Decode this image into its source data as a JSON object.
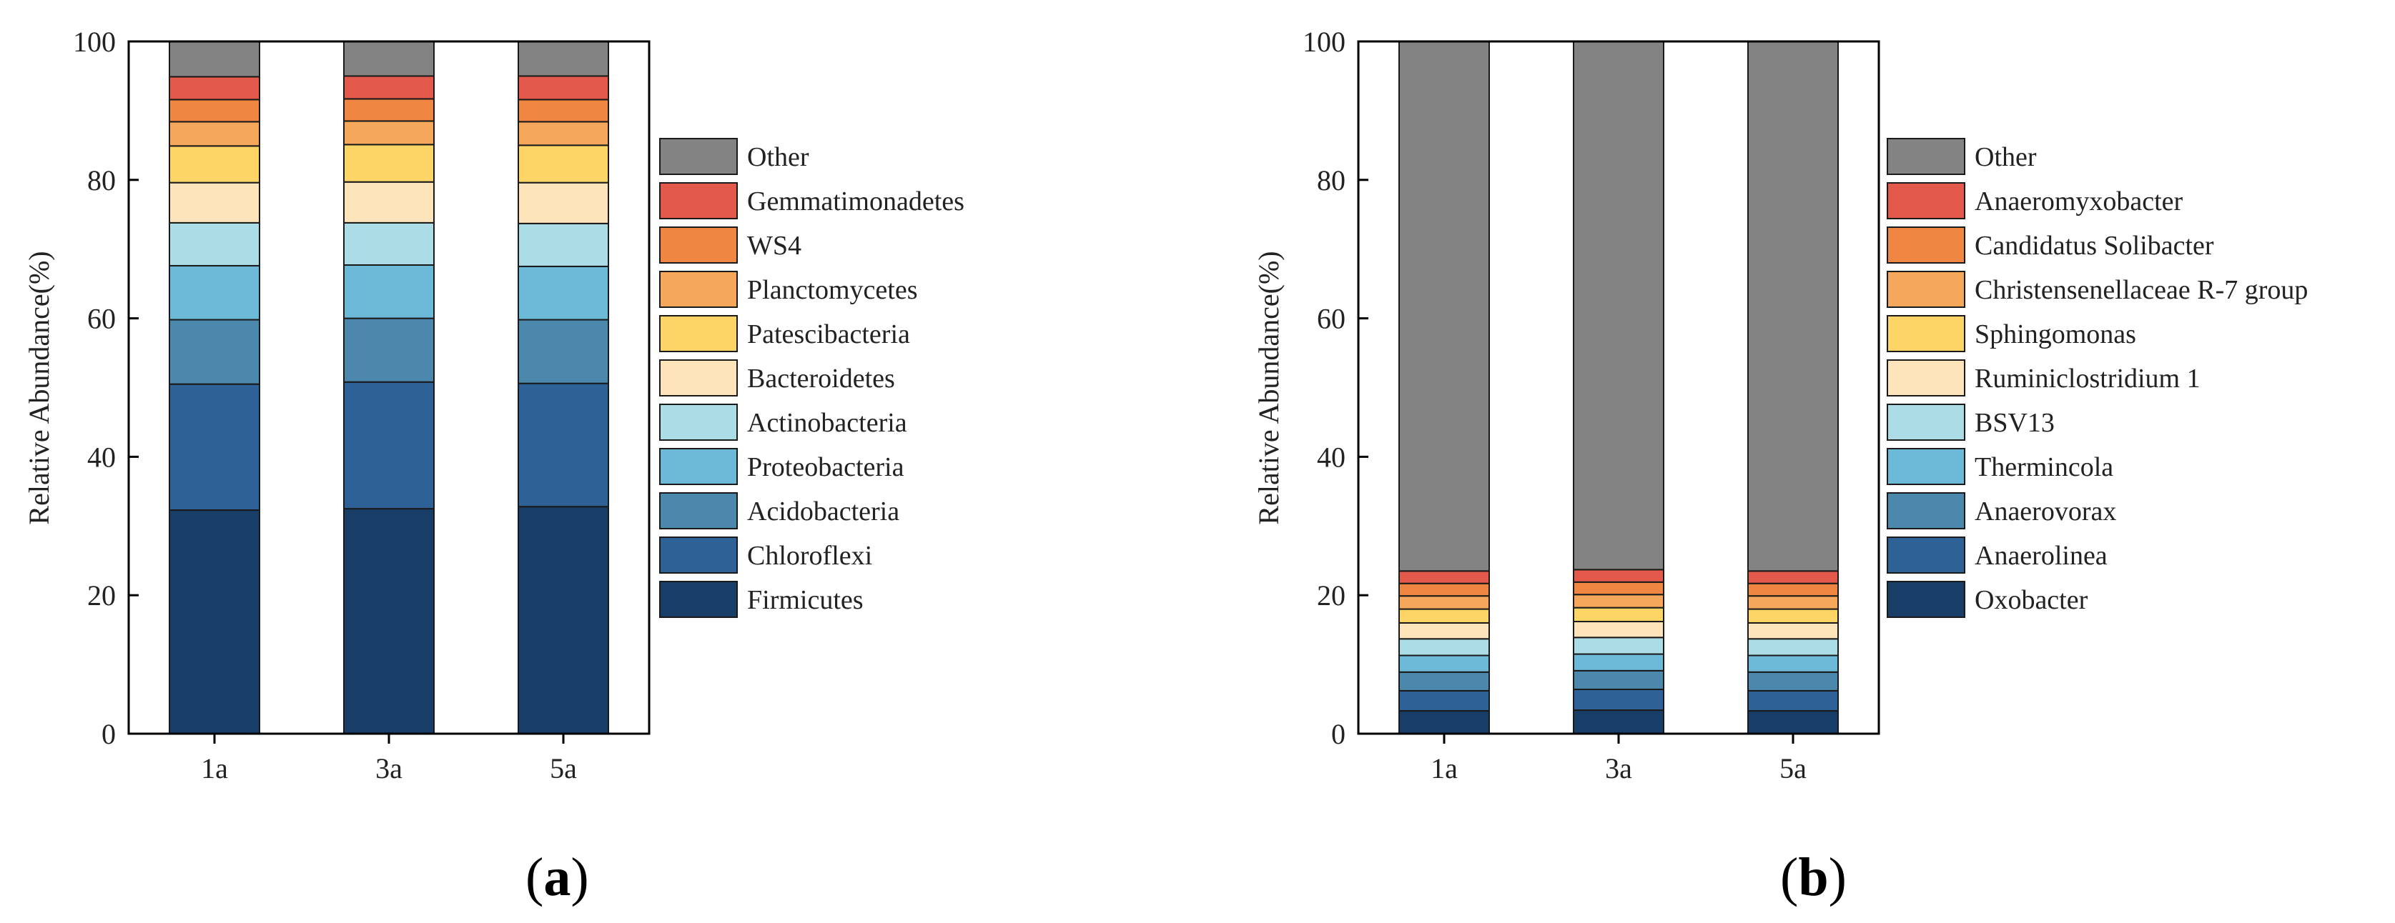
{
  "colors": [
    "#183e68",
    "#2e6196",
    "#4b88ac",
    "#6cb9d8",
    "#acdde6",
    "#fde4bb",
    "#fdd466",
    "#f5a75b",
    "#ef8641",
    "#e3594b",
    "#838383"
  ],
  "chart_data": [
    {
      "panel_label": "a",
      "type": "bar",
      "stacked": true,
      "ylabel": "Relative Abundance(%)",
      "xlabel": "",
      "ylim": [
        0,
        100
      ],
      "yticks": [
        "0",
        "20",
        "40",
        "60",
        "80",
        "100"
      ],
      "categories": [
        "1a",
        "3a",
        "5a"
      ],
      "legend_position": "right",
      "series": [
        {
          "name": "Firmicutes",
          "values": [
            32.3,
            32.5,
            32.8
          ]
        },
        {
          "name": "Chloroflexi",
          "values": [
            18.2,
            18.3,
            17.8
          ]
        },
        {
          "name": "Acidobacteria",
          "values": [
            9.3,
            9.2,
            9.2
          ]
        },
        {
          "name": "Proteobacteria",
          "values": [
            7.8,
            7.7,
            7.7
          ]
        },
        {
          "name": "Actinobacteria",
          "values": [
            6.2,
            6.1,
            6.2
          ]
        },
        {
          "name": "Bacteroidetes",
          "values": [
            5.8,
            5.9,
            5.9
          ]
        },
        {
          "name": "Patescibacteria",
          "values": [
            5.3,
            5.4,
            5.4
          ]
        },
        {
          "name": "Planctomycetes",
          "values": [
            3.5,
            3.4,
            3.4
          ]
        },
        {
          "name": "WS4",
          "values": [
            3.2,
            3.2,
            3.2
          ]
        },
        {
          "name": "Gemmatimonadetes",
          "values": [
            3.3,
            3.3,
            3.4
          ]
        },
        {
          "name": "Other",
          "values": [
            5.1,
            5.0,
            5.0
          ]
        }
      ]
    },
    {
      "panel_label": "b",
      "type": "bar",
      "stacked": true,
      "ylabel": "Relative Abundance(%)",
      "xlabel": "",
      "ylim": [
        0,
        100
      ],
      "yticks": [
        "0",
        "20",
        "40",
        "60",
        "80",
        "100"
      ],
      "categories": [
        "1a",
        "3a",
        "5a"
      ],
      "legend_position": "right",
      "series": [
        {
          "name": "Oxobacter",
          "values": [
            3.3,
            3.4,
            3.3
          ]
        },
        {
          "name": "Anaerolinea",
          "values": [
            2.9,
            3.0,
            2.9
          ]
        },
        {
          "name": "Anaerovorax",
          "values": [
            2.7,
            2.7,
            2.7
          ]
        },
        {
          "name": "Thermincola",
          "values": [
            2.4,
            2.4,
            2.4
          ]
        },
        {
          "name": "BSV13",
          "values": [
            2.4,
            2.4,
            2.4
          ]
        },
        {
          "name": "Ruminiclostridium 1",
          "values": [
            2.3,
            2.3,
            2.3
          ]
        },
        {
          "name": "Sphingomonas",
          "values": [
            2.0,
            2.0,
            2.0
          ]
        },
        {
          "name": "Christensenellaceae R-7 group",
          "values": [
            1.9,
            1.9,
            1.9
          ]
        },
        {
          "name": "Candidatus Solibacter",
          "values": [
            1.8,
            1.8,
            1.8
          ]
        },
        {
          "name": "Anaeromyxobacter",
          "values": [
            1.8,
            1.8,
            1.8
          ]
        },
        {
          "name": "Other",
          "values": [
            76.5,
            76.3,
            76.5
          ]
        }
      ]
    }
  ],
  "captions": {
    "a": {
      "open": "(",
      "letter": "a",
      "close": ")"
    },
    "b": {
      "open": "(",
      "letter": "b",
      "close": ")"
    }
  }
}
